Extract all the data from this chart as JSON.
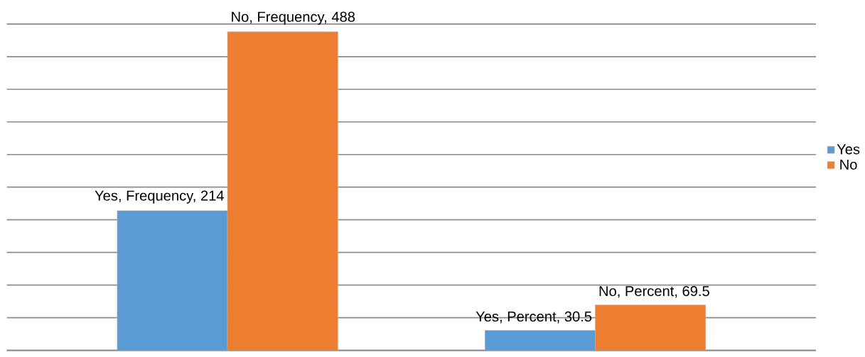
{
  "chart_data": {
    "type": "bar",
    "categories": [
      null,
      null
    ],
    "series": [
      {
        "name": "Yes",
        "color": "#5b9bd5",
        "values": [
          214,
          30.5
        ],
        "value_labels": [
          "Yes, Frequency, 214",
          "Yes, Percent, 30.5"
        ]
      },
      {
        "name": "No",
        "color": "#ed7d31",
        "values": [
          488,
          69.5
        ],
        "value_labels": [
          "No, Frequency, 488",
          "No, Percent, 69.5"
        ]
      }
    ],
    "grid": "y",
    "legend": "right"
  }
}
